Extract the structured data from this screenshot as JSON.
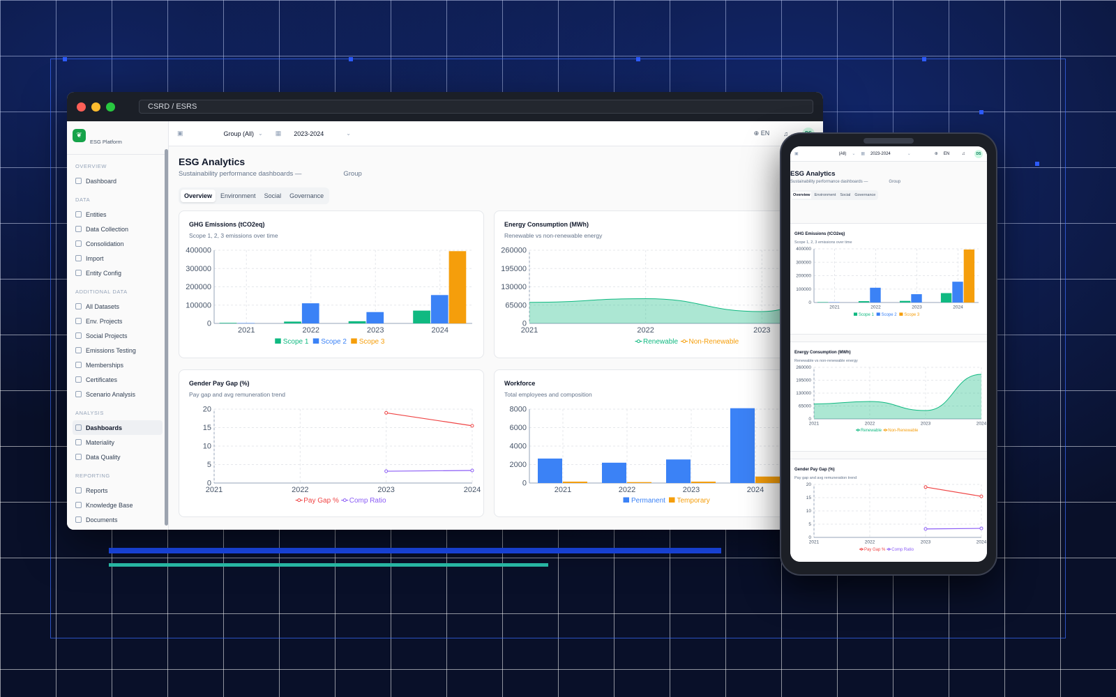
{
  "browser": {
    "url": "CSRD / ESRS"
  },
  "sidebar": {
    "brand": "ESG Platform",
    "sections": [
      {
        "title": "OVERVIEW",
        "items": [
          {
            "label": "Dashboard"
          }
        ]
      },
      {
        "title": "DATA",
        "items": [
          {
            "label": "Entities"
          },
          {
            "label": "Data Collection"
          },
          {
            "label": "Consolidation"
          },
          {
            "label": "Import"
          },
          {
            "label": "Entity Config"
          }
        ]
      },
      {
        "title": "ADDITIONAL DATA",
        "items": [
          {
            "label": "All Datasets"
          },
          {
            "label": "Env. Projects"
          },
          {
            "label": "Social Projects"
          },
          {
            "label": "Emissions Testing"
          },
          {
            "label": "Memberships"
          },
          {
            "label": "Certificates"
          },
          {
            "label": "Scenario Analysis"
          }
        ]
      },
      {
        "title": "ANALYSIS",
        "items": [
          {
            "label": "Dashboards",
            "active": true
          },
          {
            "label": "Materiality"
          },
          {
            "label": "Data Quality"
          }
        ]
      },
      {
        "title": "REPORTING",
        "items": [
          {
            "label": "Reports"
          },
          {
            "label": "Knowledge Base"
          },
          {
            "label": "Documents"
          }
        ]
      }
    ]
  },
  "topbar": {
    "group": "Group (All)",
    "period": "2023-2024",
    "lang": "EN",
    "avatar": "DS"
  },
  "page": {
    "title": "ESG Analytics",
    "subtitle": "Sustainability performance dashboards —",
    "subtitle_group": "Group",
    "tabs": [
      "Overview",
      "Environment",
      "Social",
      "Governance"
    ]
  },
  "phone": {
    "group": "(All)",
    "period": "2023-2024",
    "lang": "EN",
    "avatar": "DS"
  },
  "colors": {
    "scope1": "#10b981",
    "scope2": "#3b82f6",
    "scope3": "#f59e0b",
    "renewable": "#10b981",
    "nonrenewable": "#f59e0b",
    "paygap": "#ef4444",
    "compratio": "#8b5cf6",
    "permanent": "#3b82f6",
    "temporary": "#f59e0b"
  },
  "chart_data": [
    {
      "type": "bar",
      "title": "GHG Emissions (tCO2eq)",
      "subtitle": "Scope 1, 2, 3 emissions over time",
      "categories": [
        "2021",
        "2022",
        "2023",
        "2024"
      ],
      "series": [
        {
          "name": "Scope 1",
          "values": [
            3000,
            10000,
            12000,
            70000
          ]
        },
        {
          "name": "Scope 2",
          "values": [
            2000,
            110000,
            62000,
            155000
          ]
        },
        {
          "name": "Scope 3",
          "values": [
            0,
            0,
            0,
            395000
          ]
        }
      ],
      "yticks": [
        "0",
        "100000",
        "200000",
        "300000",
        "400000"
      ],
      "ylim": [
        0,
        400000
      ]
    },
    {
      "type": "area",
      "title": "Energy Consumption (MWh)",
      "subtitle": "Renewable vs non-renewable energy",
      "x": [
        "2021",
        "2022",
        "2023",
        "2024"
      ],
      "series": [
        {
          "name": "Renewable",
          "values": [
            75000,
            88000,
            42000,
            225000
          ]
        },
        {
          "name": "Non-Renewable",
          "values": [
            0,
            0,
            0,
            0
          ]
        }
      ],
      "yticks": [
        "0",
        "65000",
        "130000",
        "195000",
        "260000"
      ],
      "ylim": [
        0,
        260000
      ]
    },
    {
      "type": "line",
      "title": "Gender Pay Gap (%)",
      "subtitle": "Pay gap and avg remuneration trend",
      "x": [
        "2021",
        "2022",
        "2023",
        "2024"
      ],
      "series": [
        {
          "name": "Pay Gap %",
          "values": [
            null,
            null,
            19,
            15.5
          ]
        },
        {
          "name": "Comp Ratio",
          "values": [
            null,
            null,
            3.2,
            3.4
          ]
        }
      ],
      "yticks": [
        "0",
        "5",
        "10",
        "15",
        "20"
      ],
      "ylim": [
        0,
        20
      ]
    },
    {
      "type": "bar",
      "title": "Workforce",
      "subtitle": "Total employees and composition",
      "categories": [
        "2021",
        "2022",
        "2023",
        "2024"
      ],
      "series": [
        {
          "name": "Permanent",
          "values": [
            2650,
            2200,
            2550,
            8100
          ]
        },
        {
          "name": "Temporary",
          "values": [
            150,
            100,
            150,
            700
          ]
        }
      ],
      "yticks": [
        "0",
        "2000",
        "4000",
        "6000",
        "8000"
      ],
      "ylim": [
        0,
        8000
      ]
    }
  ]
}
